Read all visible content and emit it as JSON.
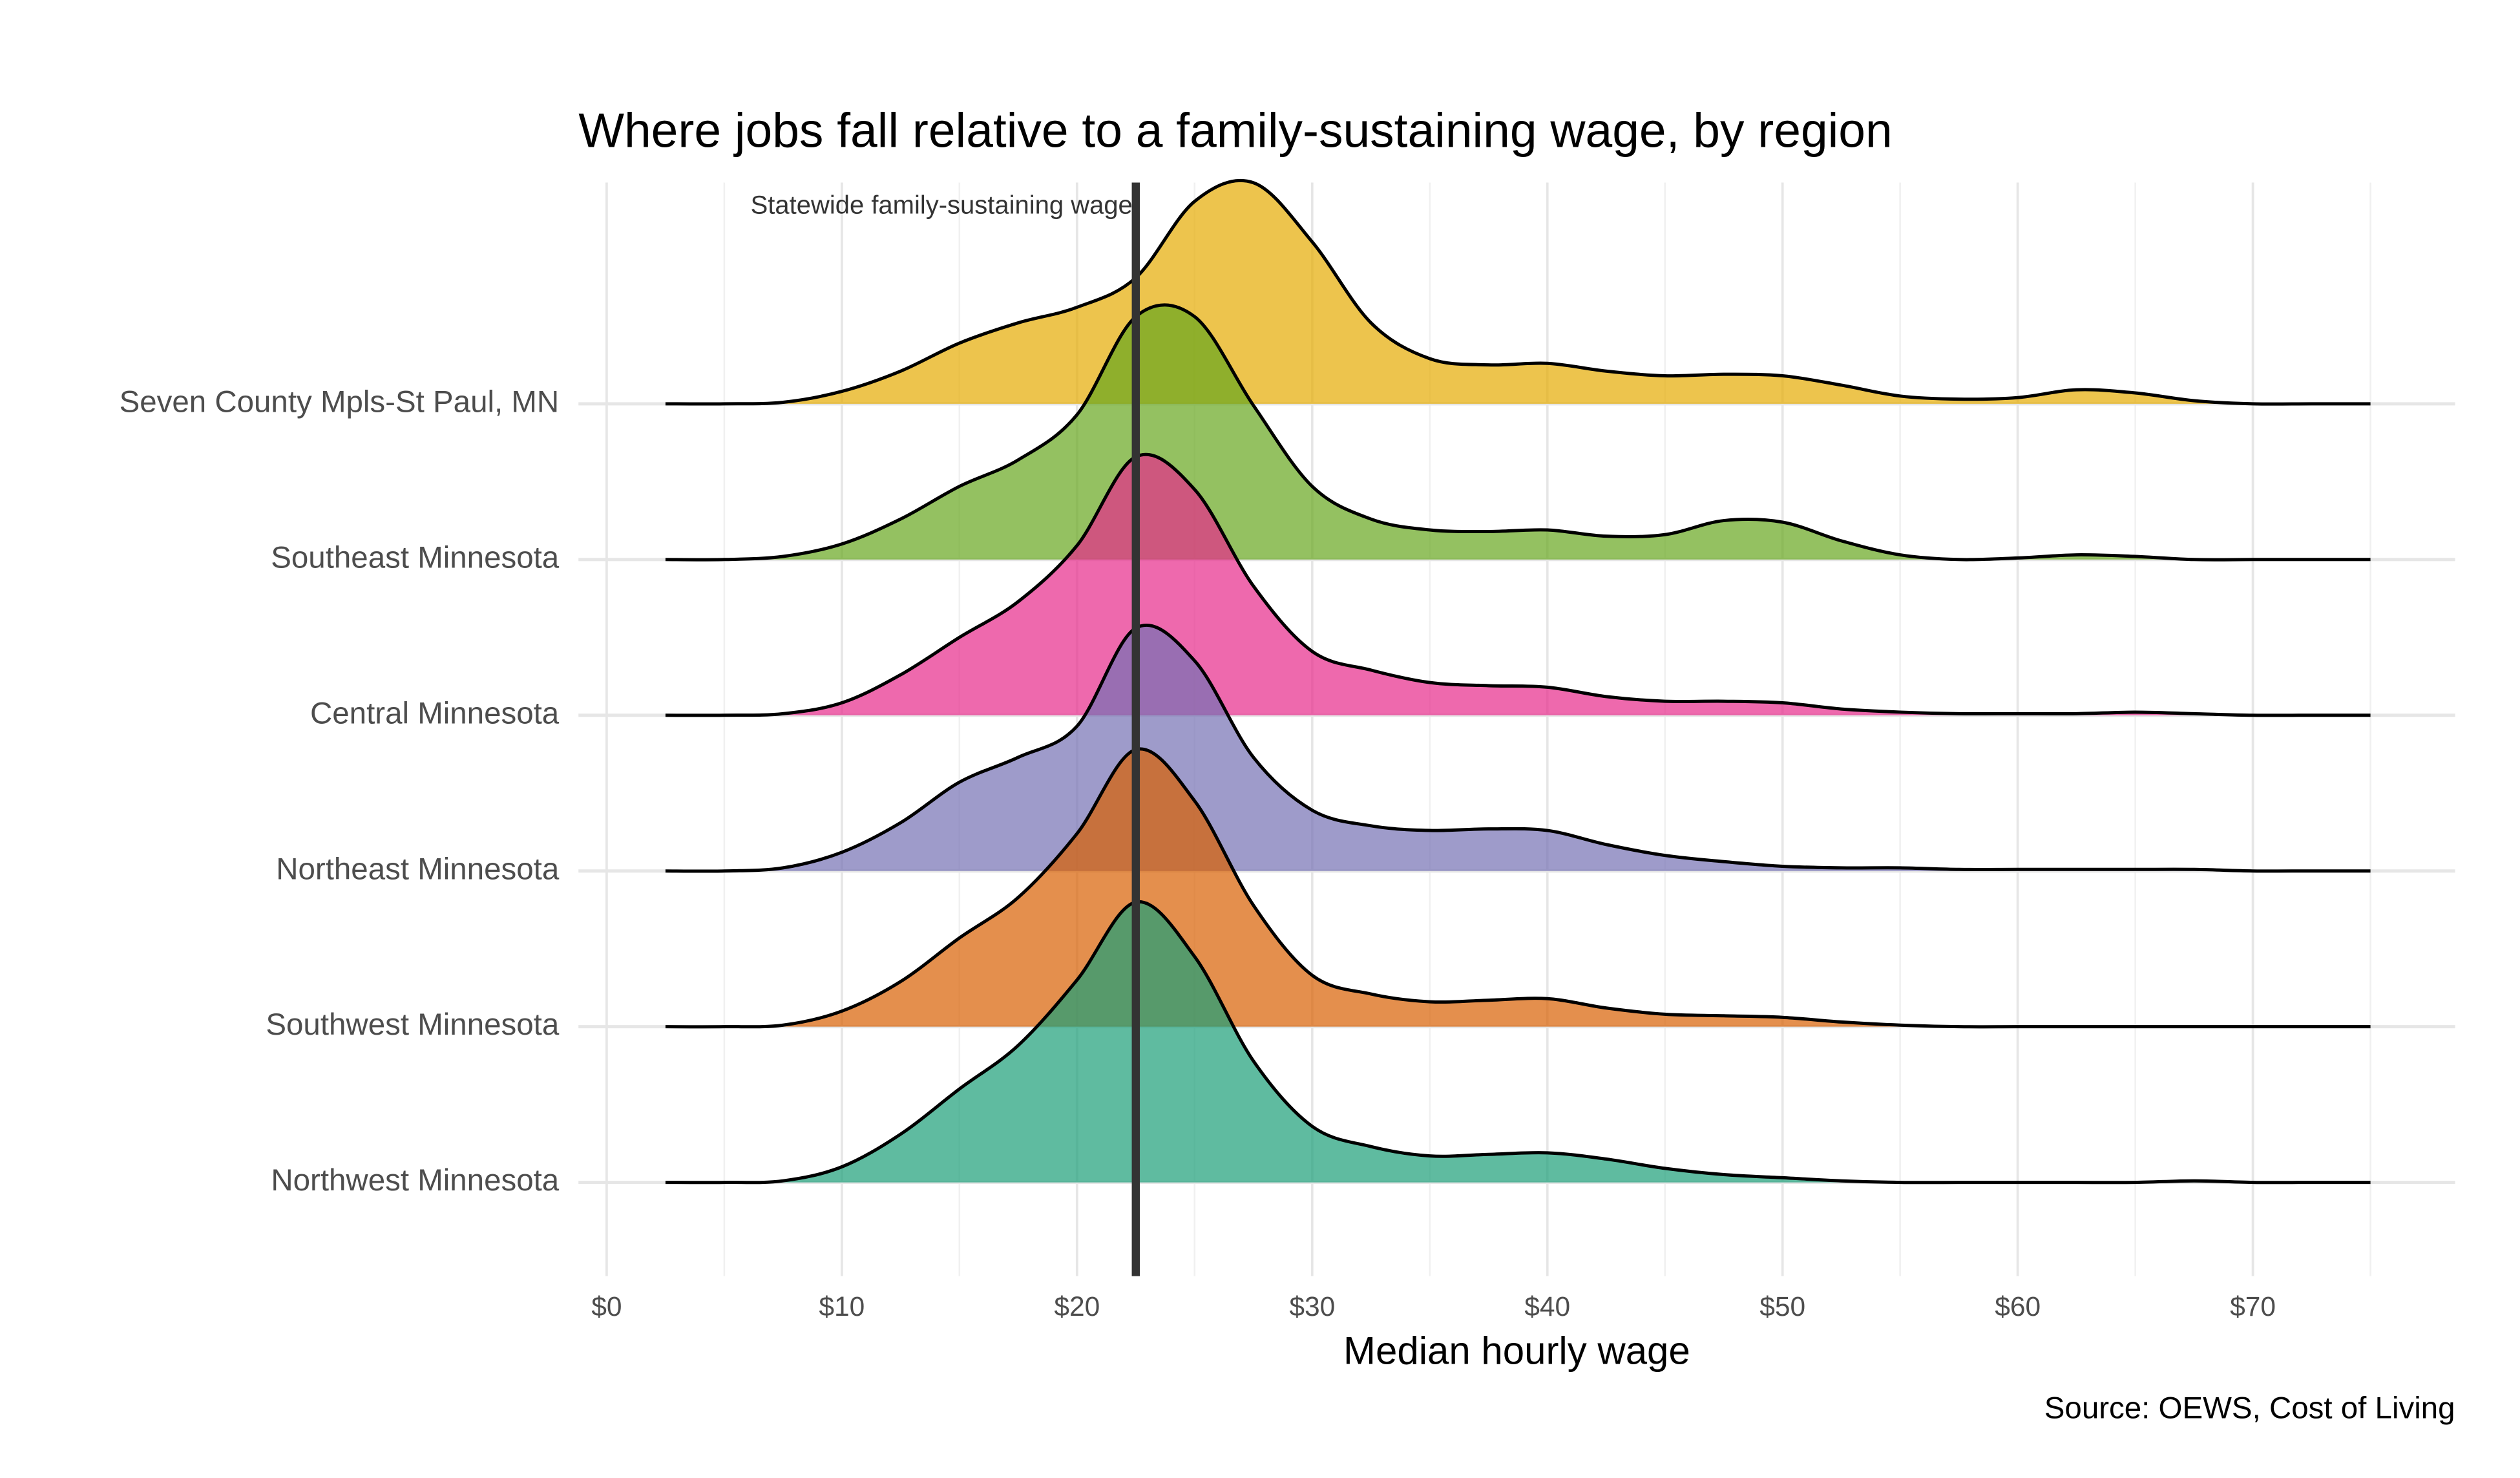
{
  "chart_data": {
    "type": "ridgeline",
    "title": "Where jobs fall relative to a family-sustaining wage, by region",
    "x_label": "Median hourly wage",
    "source": "Source: OEWS, Cost of Living",
    "x": [
      2.5,
      5,
      7.5,
      10,
      12.5,
      15,
      17.5,
      20,
      22.5,
      25,
      27.5,
      30,
      32.5,
      35,
      37.5,
      40,
      42.5,
      45,
      47.5,
      50,
      52.5,
      55,
      57.5,
      60,
      62.5,
      65,
      67.5,
      70,
      72.5,
      75
    ],
    "series": [
      {
        "name": "Seven County Mpls-St Paul, MN",
        "color": "#e6ab02",
        "values": [
          0,
          0,
          0.01,
          0.08,
          0.21,
          0.39,
          0.52,
          0.62,
          0.81,
          1.3,
          1.42,
          1.04,
          0.52,
          0.29,
          0.25,
          0.26,
          0.21,
          0.18,
          0.19,
          0.18,
          0.12,
          0.05,
          0.03,
          0.04,
          0.09,
          0.07,
          0.02,
          0,
          0,
          0
        ]
      },
      {
        "name": "Southeast Minnesota",
        "color": "#66a61e",
        "values": [
          0,
          0,
          0.02,
          0.1,
          0.26,
          0.47,
          0.64,
          0.93,
          1.56,
          1.56,
          0.99,
          0.47,
          0.26,
          0.19,
          0.18,
          0.19,
          0.15,
          0.16,
          0.25,
          0.24,
          0.12,
          0.03,
          0,
          0.01,
          0.03,
          0.02,
          0,
          0,
          0,
          0
        ]
      },
      {
        "name": "Central Minnesota",
        "color": "#e7298a",
        "values": [
          0,
          0,
          0.01,
          0.08,
          0.26,
          0.5,
          0.73,
          1.09,
          1.66,
          1.45,
          0.83,
          0.41,
          0.29,
          0.21,
          0.19,
          0.18,
          0.12,
          0.09,
          0.09,
          0.08,
          0.04,
          0.02,
          0.01,
          0.01,
          0.01,
          0.02,
          0.01,
          0,
          0,
          0
        ]
      },
      {
        "name": "Northeast Minnesota",
        "color": "#7570b3",
        "values": [
          0,
          0,
          0.02,
          0.12,
          0.31,
          0.57,
          0.73,
          0.93,
          1.56,
          1.35,
          0.73,
          0.39,
          0.29,
          0.26,
          0.27,
          0.26,
          0.17,
          0.1,
          0.06,
          0.03,
          0.02,
          0.02,
          0.01,
          0.01,
          0.01,
          0.01,
          0.01,
          0,
          0,
          0
        ]
      },
      {
        "name": "Southwest Minnesota",
        "color": "#d95f02",
        "values": [
          0,
          0,
          0.01,
          0.1,
          0.29,
          0.57,
          0.83,
          1.24,
          1.78,
          1.45,
          0.78,
          0.33,
          0.21,
          0.16,
          0.17,
          0.18,
          0.12,
          0.08,
          0.07,
          0.06,
          0.03,
          0.01,
          0,
          0,
          0,
          0,
          0,
          0,
          0,
          0
        ]
      },
      {
        "name": "Northwest Minnesota",
        "color": "#1b9e77",
        "values": [
          0,
          0,
          0.01,
          0.1,
          0.31,
          0.6,
          0.88,
          1.3,
          1.8,
          1.45,
          0.78,
          0.36,
          0.23,
          0.17,
          0.18,
          0.19,
          0.15,
          0.09,
          0.05,
          0.03,
          0.01,
          0,
          0,
          0,
          0,
          0,
          0.01,
          0,
          0,
          0
        ]
      }
    ],
    "xlim": [
      -1.2,
      78.6
    ],
    "xticks": [
      {
        "value": 0,
        "label": "$0"
      },
      {
        "value": 10,
        "label": "$10"
      },
      {
        "value": 20,
        "label": "$20"
      },
      {
        "value": 30,
        "label": "$30"
      },
      {
        "value": 40,
        "label": "$40"
      },
      {
        "value": 50,
        "label": "$50"
      },
      {
        "value": 60,
        "label": "$60"
      },
      {
        "value": 70,
        "label": "$70"
      }
    ],
    "minor_xticks": [
      5,
      15,
      25,
      35,
      45,
      55,
      65,
      75
    ],
    "reference_line": {
      "value": 22.5,
      "label": "Statewide family-sustaining wage"
    },
    "fill_opacity": 0.7,
    "grid": true
  }
}
